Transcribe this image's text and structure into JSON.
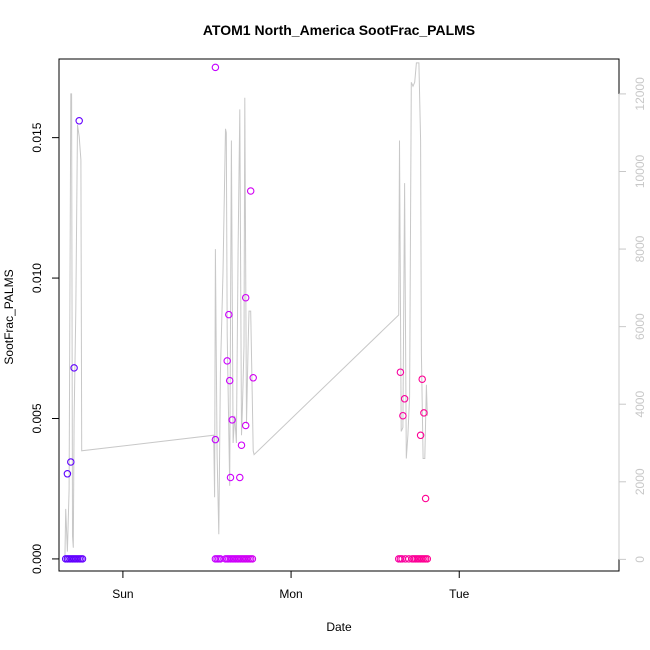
{
  "chart_data": {
    "type": "scatter",
    "title": "ATOM1 North_America SootFrac_PALMS",
    "xlabel": "Date",
    "ylabel": "SootFrac_PALMS",
    "x_ticks": [
      "Sun",
      "Mon",
      "Tue"
    ],
    "x_tick_positions_days": [
      0,
      1,
      2
    ],
    "xlim_days": [
      -0.38,
      2.95
    ],
    "ylim": [
      -0.00043,
      0.0178
    ],
    "y_ticks": [
      "0.000",
      "0.005",
      "0.010",
      "0.015"
    ],
    "y_tick_values": [
      0,
      0.005,
      0.01,
      0.015
    ],
    "y2_ticks": [
      "0",
      "2000",
      "4000",
      "6000",
      "8000",
      "10000",
      "12000"
    ],
    "y2_tick_values": [
      0,
      2000,
      4000,
      6000,
      8000,
      10000,
      12000
    ],
    "y2lim": [
      -300,
      12900
    ],
    "colors": {
      "early": "#5a00ff",
      "mid": "#cc00ff",
      "late": "#ff0090",
      "altitude_line": "#c8c8c8"
    },
    "series": [
      {
        "values": [
          [
            -0.33,
            0.00303
          ],
          [
            -0.31,
            0.00345
          ],
          [
            -0.29,
            0.0068
          ],
          [
            -0.26,
            0.0156
          ],
          [
            -0.34,
            0
          ],
          [
            -0.33,
            0
          ],
          [
            -0.32,
            0
          ],
          [
            -0.31,
            0
          ],
          [
            -0.3,
            0
          ],
          [
            -0.29,
            0
          ],
          [
            -0.28,
            0
          ],
          [
            -0.27,
            0
          ],
          [
            -0.26,
            0
          ],
          [
            -0.25,
            0
          ],
          [
            -0.24,
            0
          ]
        ]
      },
      {
        "values": [
          [
            0.55,
            0.0175
          ],
          [
            0.55,
            0.00425
          ],
          [
            0.62,
            0.00705
          ],
          [
            0.63,
            0.0087
          ],
          [
            0.635,
            0.00635
          ],
          [
            0.64,
            0.0029
          ],
          [
            0.65,
            0.00495
          ],
          [
            0.695,
            0.0029
          ],
          [
            0.705,
            0.00405
          ],
          [
            0.73,
            0.0093
          ],
          [
            0.73,
            0.00475
          ],
          [
            0.76,
            0.0131
          ],
          [
            0.775,
            0.00645
          ],
          [
            0.55,
            0
          ],
          [
            0.56,
            0
          ],
          [
            0.57,
            0
          ],
          [
            0.58,
            0
          ],
          [
            0.61,
            0
          ],
          [
            0.62,
            0
          ],
          [
            0.63,
            0
          ],
          [
            0.64,
            0
          ],
          [
            0.65,
            0
          ],
          [
            0.66,
            0
          ],
          [
            0.67,
            0
          ],
          [
            0.68,
            0
          ],
          [
            0.69,
            0
          ],
          [
            0.7,
            0
          ],
          [
            0.71,
            0
          ],
          [
            0.72,
            0
          ],
          [
            0.73,
            0
          ],
          [
            0.74,
            0
          ],
          [
            0.75,
            0
          ],
          [
            0.76,
            0
          ],
          [
            0.77,
            0
          ]
        ]
      },
      {
        "values": [
          [
            1.65,
            0.00665
          ],
          [
            1.665,
            0.0051
          ],
          [
            1.675,
            0.0057
          ],
          [
            1.77,
            0.0044
          ],
          [
            1.78,
            0.0064
          ],
          [
            1.79,
            0.0052
          ],
          [
            1.8,
            0.00215
          ],
          [
            1.64,
            0
          ],
          [
            1.65,
            0
          ],
          [
            1.66,
            0
          ],
          [
            1.68,
            0
          ],
          [
            1.7,
            0
          ],
          [
            1.72,
            0
          ],
          [
            1.73,
            0
          ],
          [
            1.74,
            0
          ],
          [
            1.75,
            0
          ],
          [
            1.76,
            0
          ],
          [
            1.77,
            0
          ],
          [
            1.78,
            0
          ],
          [
            1.79,
            0
          ],
          [
            1.8,
            0
          ],
          [
            1.81,
            0
          ]
        ]
      }
    ],
    "altitude_line": [
      [
        -0.345,
        0
      ],
      [
        -0.34,
        1300
      ],
      [
        -0.33,
        200
      ],
      [
        -0.32,
        1800
      ],
      [
        -0.31,
        12000
      ],
      [
        -0.305,
        12000
      ],
      [
        -0.3,
        600
      ],
      [
        -0.295,
        300
      ],
      [
        -0.29,
        3600
      ],
      [
        -0.28,
        6400
      ],
      [
        -0.27,
        11200
      ],
      [
        -0.26,
        10900
      ],
      [
        -0.25,
        10300
      ],
      [
        -0.245,
        2800
      ],
      [
        0.54,
        3200
      ],
      [
        0.545,
        1600
      ],
      [
        0.55,
        8000
      ],
      [
        0.56,
        2700
      ],
      [
        0.57,
        650
      ],
      [
        0.58,
        4800
      ],
      [
        0.595,
        7400
      ],
      [
        0.61,
        11100
      ],
      [
        0.615,
        11000
      ],
      [
        0.62,
        5800
      ],
      [
        0.635,
        1900
      ],
      [
        0.645,
        10800
      ],
      [
        0.655,
        3000
      ],
      [
        0.665,
        3700
      ],
      [
        0.675,
        3000
      ],
      [
        0.685,
        8000
      ],
      [
        0.695,
        11600
      ],
      [
        0.705,
        3200
      ],
      [
        0.71,
        3800
      ],
      [
        0.72,
        5500
      ],
      [
        0.725,
        11900
      ],
      [
        0.735,
        3500
      ],
      [
        0.745,
        5600
      ],
      [
        0.75,
        6400
      ],
      [
        0.76,
        6400
      ],
      [
        0.77,
        4000
      ],
      [
        0.775,
        2800
      ],
      [
        0.78,
        2700
      ],
      [
        1.64,
        6300
      ],
      [
        1.645,
        10800
      ],
      [
        1.655,
        3300
      ],
      [
        1.665,
        3400
      ],
      [
        1.675,
        9700
      ],
      [
        1.685,
        2600
      ],
      [
        1.695,
        3200
      ],
      [
        1.705,
        4200
      ],
      [
        1.715,
        12300
      ],
      [
        1.725,
        12200
      ],
      [
        1.735,
        12300
      ],
      [
        1.745,
        12800
      ],
      [
        1.76,
        12800
      ],
      [
        1.77,
        10800
      ],
      [
        1.775,
        5300
      ],
      [
        1.785,
        2600
      ],
      [
        1.795,
        2600
      ],
      [
        1.805,
        4500
      ],
      [
        1.81,
        3700
      ]
    ]
  }
}
